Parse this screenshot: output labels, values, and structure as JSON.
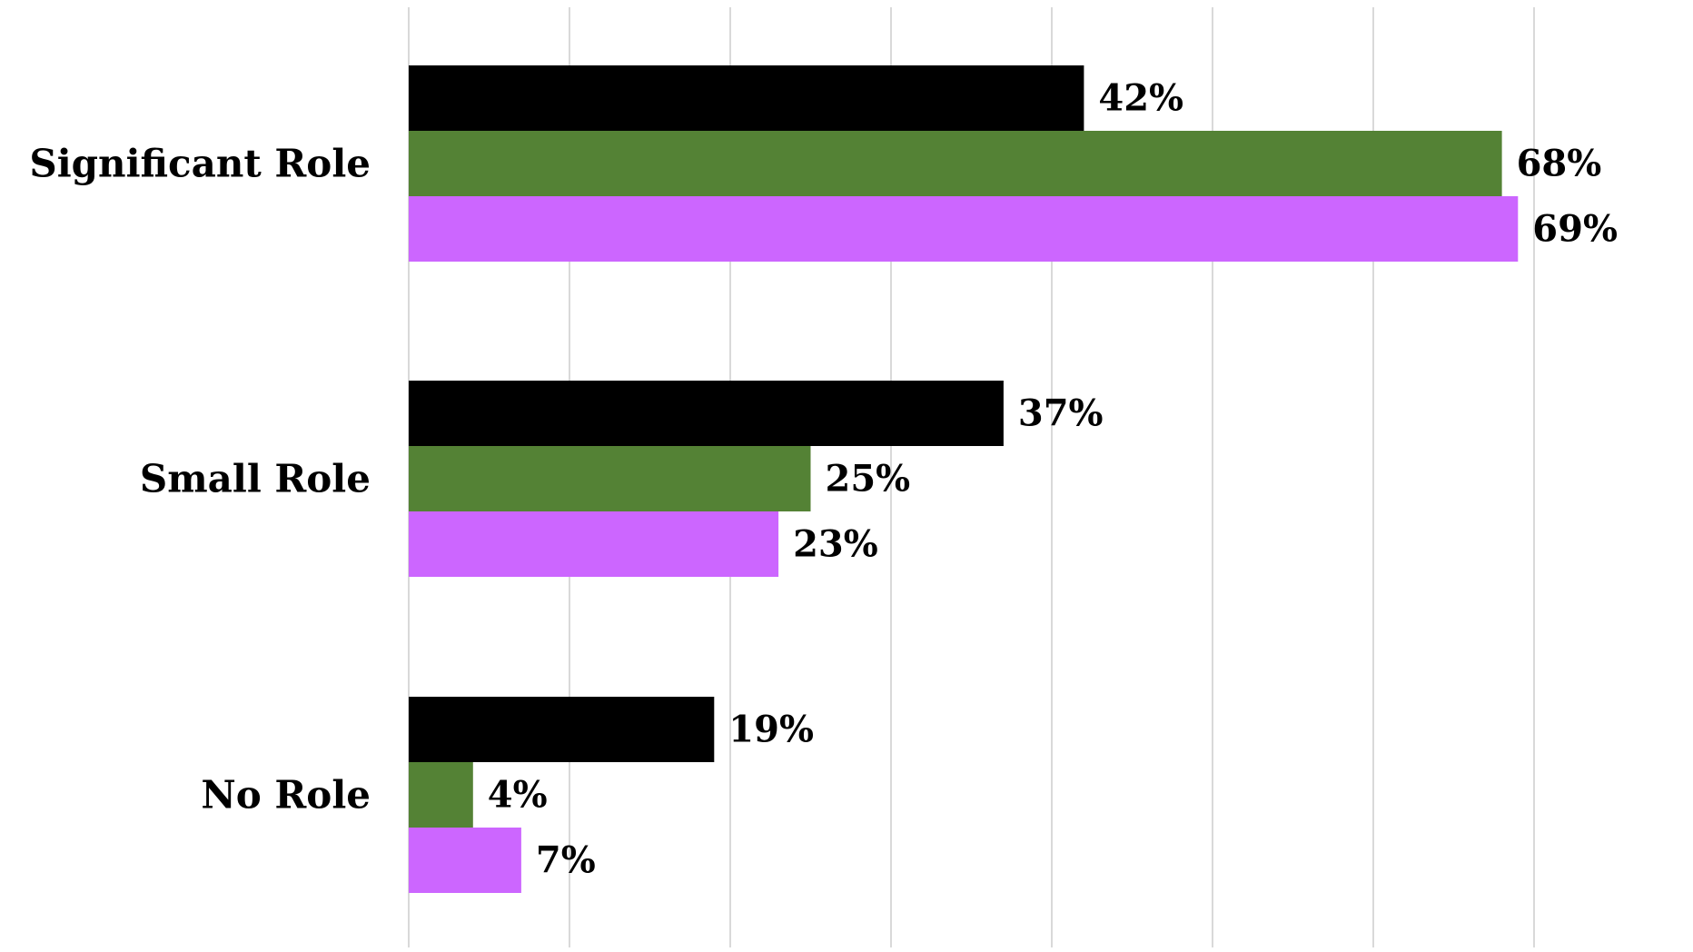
{
  "chart_data": {
    "type": "bar",
    "orientation": "horizontal",
    "categories": [
      "Significant Role",
      "Small Role",
      "No Role"
    ],
    "series": [
      {
        "values": [
          42,
          37,
          19
        ],
        "labels": [
          "42%",
          "37%",
          "19%"
        ],
        "color": "#000000"
      },
      {
        "values": [
          68,
          25,
          4
        ],
        "labels": [
          "68%",
          "25%",
          "4%"
        ],
        "color": "#548235"
      },
      {
        "values": [
          69,
          23,
          7
        ],
        "labels": [
          "69%",
          "23%",
          "7%"
        ],
        "color": "#CC66FF"
      }
    ],
    "xlim": [
      0,
      80
    ],
    "grid": true,
    "gridline_color": "#D9D9D9",
    "title": "",
    "xlabel": "",
    "ylabel": ""
  }
}
